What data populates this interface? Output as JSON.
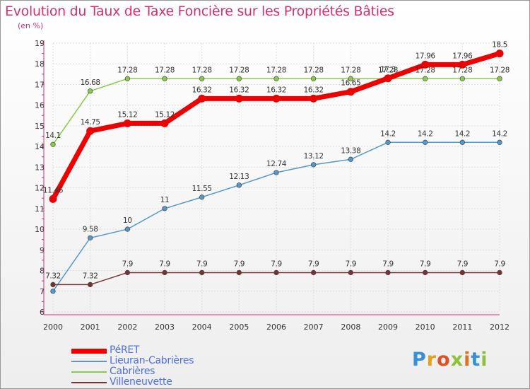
{
  "header": {
    "title": "Evolution du Taux de Taxe Foncière sur les Propriétés Bâties",
    "subtitle": "(en %)"
  },
  "logo": {
    "text": "Proxiti",
    "letter_colors": [
      "#3a8fd8",
      "#e8a020",
      "#e05020",
      "#8fc03a",
      "#e07020",
      "#3a8fd8",
      "#8fc03a"
    ]
  },
  "chart_data": {
    "type": "line",
    "title": "Evolution du Taux de Taxe Foncière sur les Propriétés Bâties",
    "ylabel": "(en %)",
    "x": [
      2000,
      2001,
      2002,
      2003,
      2004,
      2005,
      2006,
      2007,
      2008,
      2009,
      2010,
      2011,
      2012
    ],
    "ylim": [
      6,
      19
    ],
    "yticks": [
      6,
      7,
      8,
      9,
      10,
      11,
      12,
      13,
      14,
      15,
      16,
      17,
      18,
      19
    ],
    "grid": true,
    "legend_position": "bottom-left",
    "series": [
      {
        "name": "Cabrières",
        "color": "#88cc44",
        "values": [
          14.1,
          16.68,
          17.28,
          17.28,
          17.28,
          17.28,
          17.28,
          17.28,
          17.28,
          17.28,
          17.28,
          17.28,
          17.28
        ],
        "labels": [
          "14.1",
          "16.68",
          "17.28",
          "17.28",
          "17.28",
          "17.28",
          "17.28",
          "17.28",
          "17.28",
          "17.28",
          "17.28",
          "17.28",
          "17.28"
        ]
      },
      {
        "name": "Lieuran-Cabrières",
        "color": "#5599cc",
        "values": [
          7,
          9.58,
          10,
          11,
          11.55,
          12.13,
          12.74,
          13.12,
          13.38,
          14.2,
          14.2,
          14.2,
          14.2
        ],
        "labels": [
          "",
          "9.58",
          "10",
          "11",
          "11.55",
          "12.13",
          "12.74",
          "13.12",
          "13.38",
          "14.2",
          "14.2",
          "14.2",
          "14.2"
        ]
      },
      {
        "name": "Villeneuvette",
        "color": "#773333",
        "values": [
          7.32,
          7.32,
          7.9,
          7.9,
          7.9,
          7.9,
          7.9,
          7.9,
          7.9,
          7.9,
          7.9,
          7.9,
          7.9
        ],
        "labels": [
          "7.32",
          "7.32",
          "7.9",
          "7.9",
          "7.9",
          "7.9",
          "7.9",
          "7.9",
          "7.9",
          "7.9",
          "7.9",
          "7.9",
          "7.9"
        ]
      },
      {
        "name": "PéRET",
        "color": "#ee0000",
        "values": [
          11.46,
          14.75,
          15.12,
          15.12,
          16.32,
          16.32,
          16.32,
          16.32,
          16.65,
          17.3,
          17.96,
          17.96,
          18.5
        ],
        "labels": [
          "11.46",
          "14.75",
          "15.12",
          "15.12",
          "16.32",
          "16.32",
          "16.32",
          "16.32",
          "16.65",
          "17.3",
          "17.96",
          "17.96",
          "18.5"
        ]
      }
    ]
  },
  "legend": {
    "items": [
      {
        "label": "PéRET",
        "color": "#ee0000",
        "thickness": 7
      },
      {
        "label": "Lieuran-Cabrières",
        "color": "#5599cc",
        "thickness": 2
      },
      {
        "label": "Cabrières",
        "color": "#88cc44",
        "thickness": 2
      },
      {
        "label": "Villeneuvette",
        "color": "#773333",
        "thickness": 2
      }
    ]
  }
}
